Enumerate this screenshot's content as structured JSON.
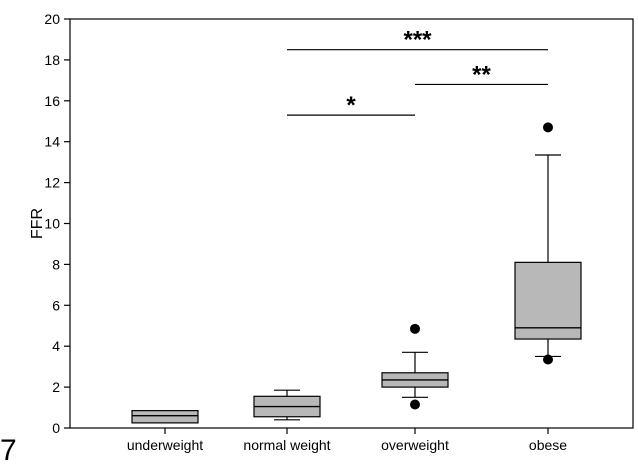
{
  "panel_label": "7",
  "chart_data": {
    "type": "box",
    "ylabel": "FFR",
    "xlabel": "",
    "ylim": [
      0,
      20
    ],
    "yticks": [
      0,
      2,
      4,
      6,
      8,
      10,
      12,
      14,
      16,
      18,
      20
    ],
    "categories": [
      "underweight",
      "normal weight",
      "overweight",
      "obese"
    ],
    "box_color": "#b8b8b8",
    "boxes": [
      {
        "category": "underweight",
        "whisker_low": null,
        "q1": 0.25,
        "median": 0.6,
        "q3": 0.85,
        "whisker_high": null,
        "outliers": []
      },
      {
        "category": "normal weight",
        "whisker_low": 0.4,
        "q1": 0.55,
        "median": 1.05,
        "q3": 1.55,
        "whisker_high": 1.85,
        "outliers": []
      },
      {
        "category": "overweight",
        "whisker_low": 1.5,
        "q1": 2.0,
        "median": 2.35,
        "q3": 2.7,
        "whisker_high": 3.7,
        "outliers": [
          1.15,
          4.85
        ]
      },
      {
        "category": "obese",
        "whisker_low": 3.5,
        "q1": 4.35,
        "median": 4.9,
        "q3": 8.1,
        "whisker_high": 13.35,
        "outliers": [
          3.35,
          14.7
        ]
      }
    ],
    "significance": [
      {
        "from": "overweight",
        "to": "obese",
        "y": 18.5,
        "label": "***"
      },
      {
        "from": "overweight",
        "to": "obese",
        "y": 16.8,
        "label": "**"
      },
      {
        "from": "normal weight",
        "to": "overweight",
        "y": 15.3,
        "label": "*"
      }
    ],
    "significance_spans": [
      {
        "from": "normal weight",
        "to": "obese"
      },
      {
        "from": "overweight",
        "to": "obese"
      },
      {
        "from": "normal weight",
        "to": "overweight"
      }
    ]
  }
}
